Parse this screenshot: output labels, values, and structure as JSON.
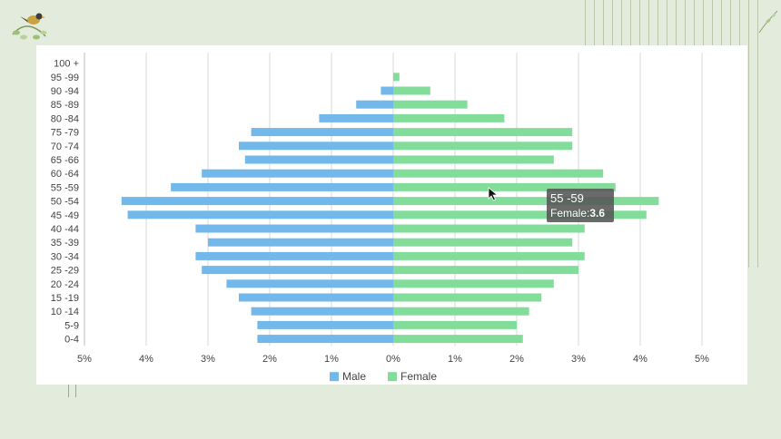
{
  "colors": {
    "male": "#72b8ea",
    "female": "#82dd9a",
    "grid": "#d8d8d8",
    "background": "#e3ebdc"
  },
  "icons": [
    "bird-icon",
    "leaf-sprig-icon",
    "mouse-cursor-icon"
  ],
  "chart_data": {
    "type": "bar",
    "orientation": "horizontal",
    "title": "",
    "xlabel": "",
    "ylabel": "",
    "categories": [
      "100 +",
      "95 -99",
      "90 -94",
      "85 -89",
      "80 -84",
      "75 -79",
      "70 -74",
      "65 -66",
      "60 -64",
      "55 -59",
      "50 -54",
      "45 -49",
      "40 -44",
      "35 -39",
      "30 -34",
      "25 -29",
      "20 -24",
      "15 -19",
      "10 -14",
      "5-9",
      "0-4"
    ],
    "xlim": [
      -5,
      5
    ],
    "x_ticks": [
      "5%",
      "4%",
      "3%",
      "2%",
      "1%",
      "0%",
      "1%",
      "2%",
      "3%",
      "4%",
      "5%"
    ],
    "grid": true,
    "legend_position": "bottom-center",
    "series": [
      {
        "name": "Male",
        "values": [
          0,
          0,
          0.2,
          0.6,
          1.2,
          2.3,
          2.5,
          2.4,
          3.1,
          3.6,
          4.4,
          4.3,
          3.2,
          3.0,
          3.2,
          3.1,
          2.7,
          2.5,
          2.3,
          2.2,
          2.2
        ]
      },
      {
        "name": "Female",
        "values": [
          0,
          0.1,
          0.6,
          1.2,
          1.8,
          2.9,
          2.9,
          2.6,
          3.4,
          3.6,
          4.3,
          4.1,
          3.1,
          2.9,
          3.1,
          3.0,
          2.6,
          2.4,
          2.2,
          2.0,
          2.1
        ]
      }
    ]
  },
  "tooltip": {
    "category": "55 -59",
    "series_label": "Female:",
    "value": "3.6"
  }
}
